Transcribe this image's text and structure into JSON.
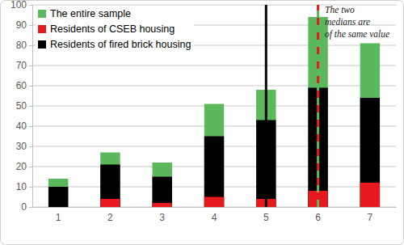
{
  "chart_data": {
    "type": "bar",
    "categories": [
      "1",
      "2",
      "3",
      "4",
      "5",
      "6",
      "7"
    ],
    "series": [
      {
        "name": "The entire sample",
        "color": "#5cb85c",
        "values": [
          14,
          27,
          22,
          51,
          58,
          94,
          81
        ],
        "median": 6
      },
      {
        "name": "Residents of CSEB housing",
        "color": "#e8191e",
        "values": [
          0,
          4,
          2,
          5,
          4,
          8,
          12
        ],
        "median": 6
      },
      {
        "name": "Residents of fired brick housing",
        "color": "#000000",
        "values": [
          10,
          21,
          15,
          35,
          43,
          59,
          54
        ],
        "median": 5
      }
    ],
    "annotations": [
      {
        "text": [
          "The two",
          "medians are",
          "of the same value"
        ]
      }
    ],
    "ylim": [
      0,
      100
    ],
    "yticks": [
      0,
      10,
      20,
      30,
      40,
      50,
      60,
      70,
      80,
      90,
      100
    ],
    "grid": true,
    "legend": "top-left"
  }
}
